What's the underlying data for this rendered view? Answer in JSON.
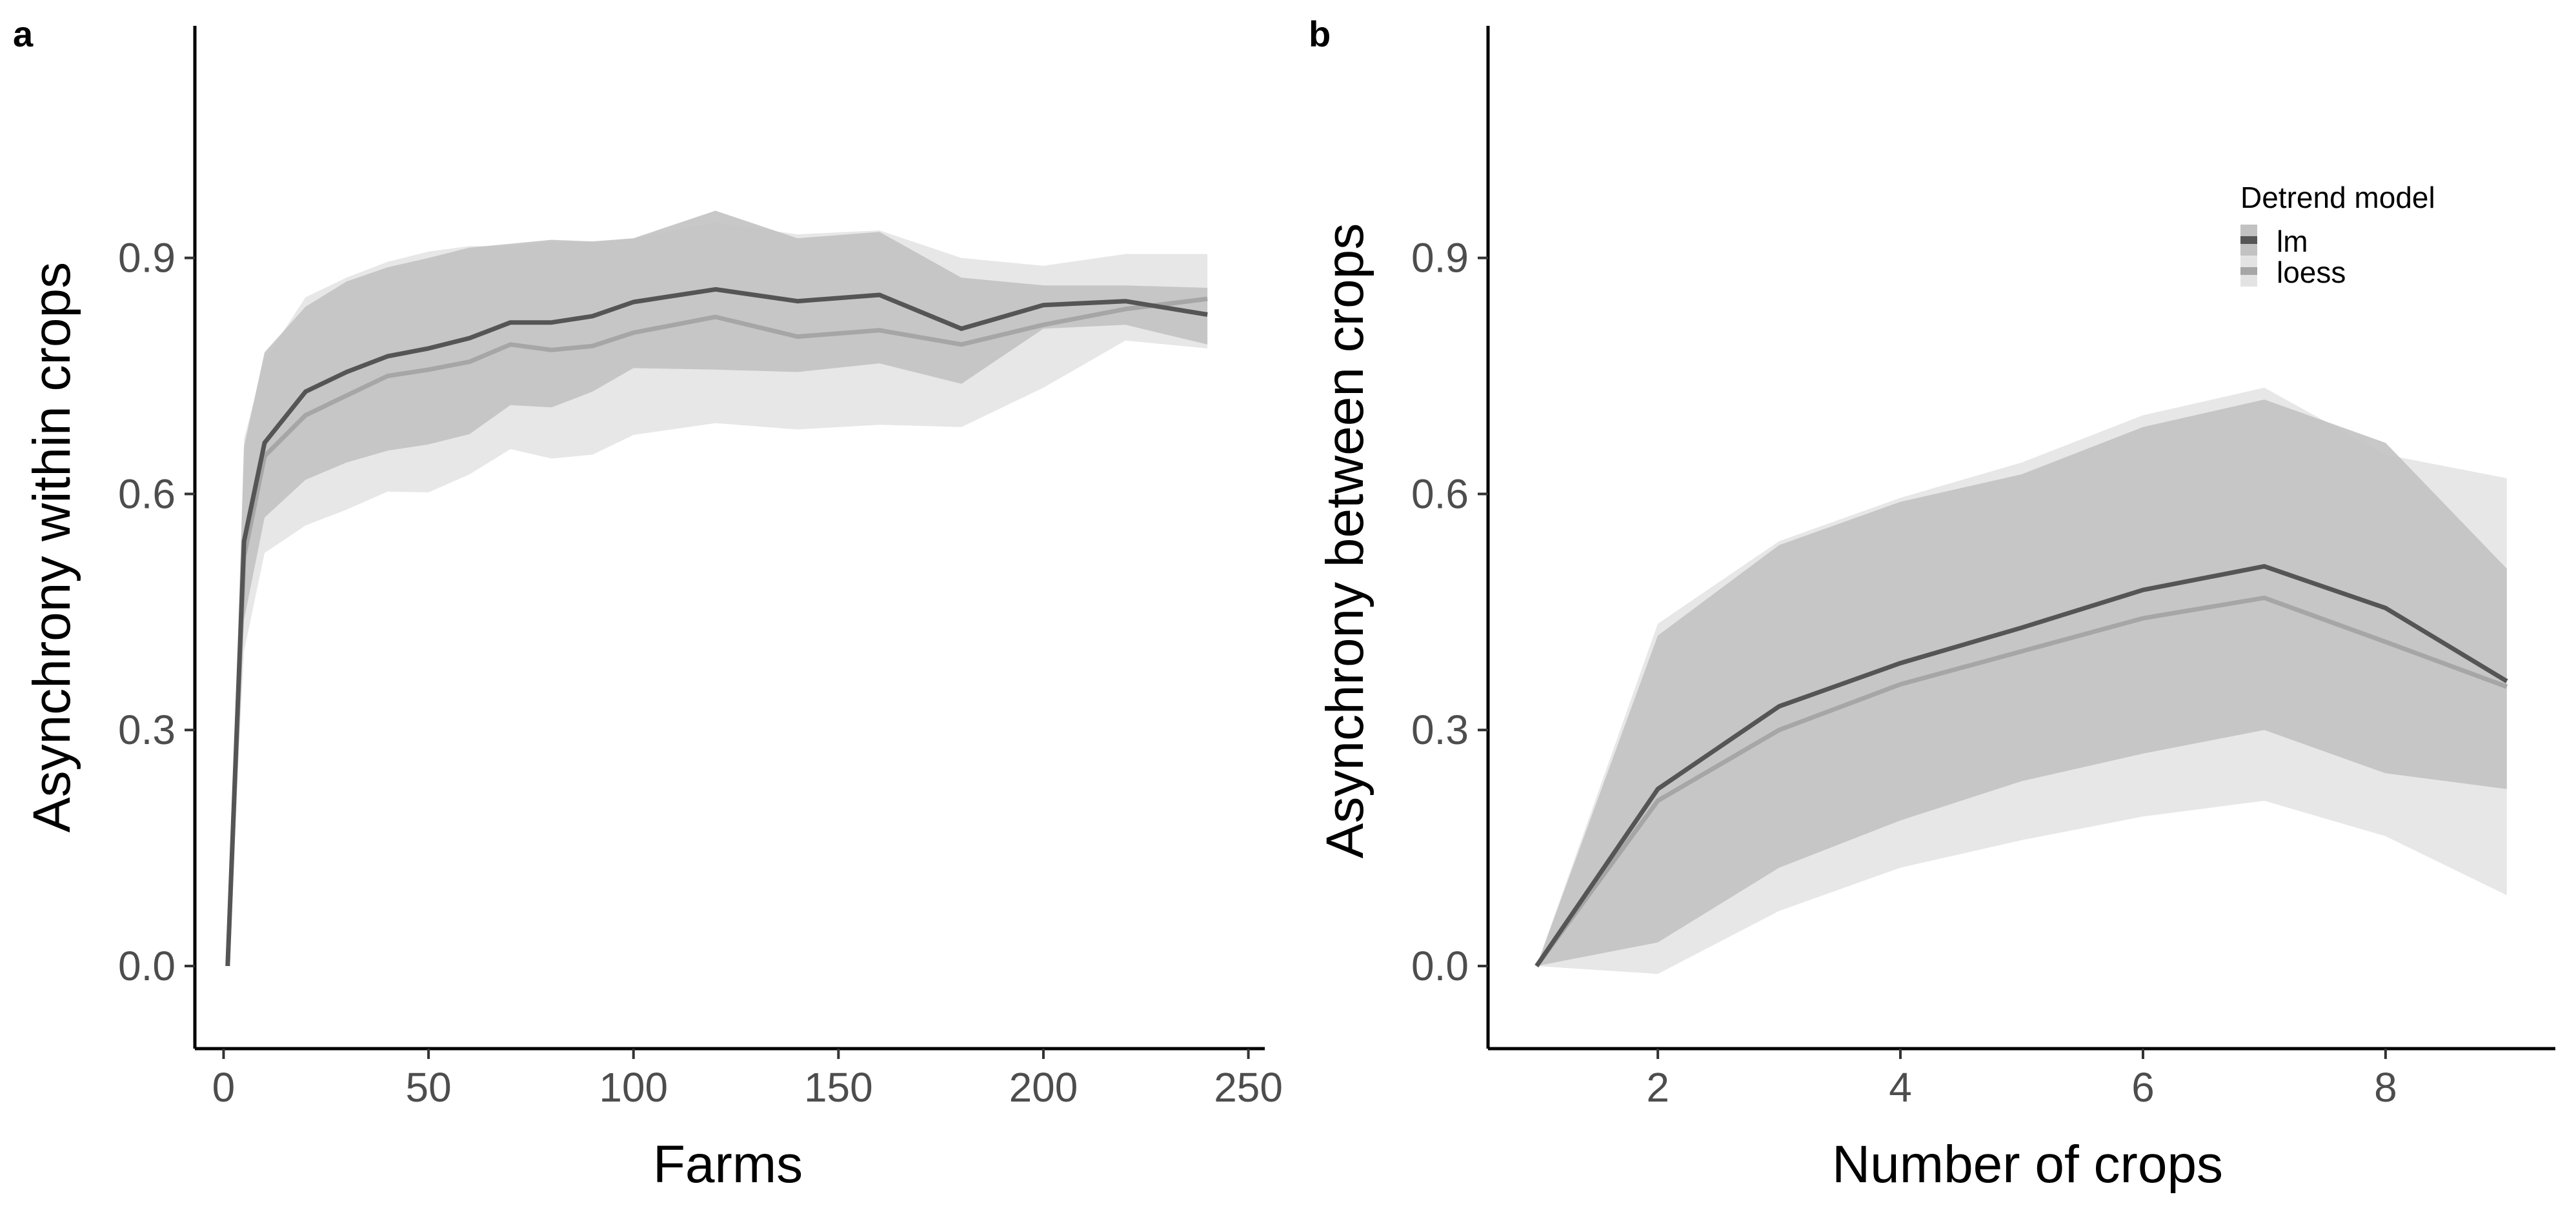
{
  "legend": {
    "title": "Detrend model",
    "entries": [
      {
        "label": "lm",
        "line_color": "#555555",
        "band_color": "#c2c2c2",
        "band_opacity": 0.9
      },
      {
        "label": "loess",
        "line_color": "#a6a6a6",
        "band_color": "#e3e3e3",
        "band_opacity": 0.85
      }
    ]
  },
  "chart_data": [
    {
      "panel": "a",
      "type": "line",
      "xlabel": "Farms",
      "ylabel": "Asynchrony within crops",
      "xlim": [
        -7,
        254
      ],
      "ylim": [
        -0.105,
        1.195
      ],
      "xticks": [
        0,
        50,
        100,
        150,
        200,
        250
      ],
      "yticks": [
        0.0,
        0.3,
        0.6,
        0.9
      ],
      "ytick_labels": [
        "0.0",
        "0.3",
        "0.6",
        "0.9"
      ],
      "grid": false,
      "x": [
        1,
        5,
        10,
        20,
        30,
        40,
        50,
        60,
        70,
        80,
        90,
        100,
        120,
        140,
        160,
        180,
        200,
        220,
        240
      ],
      "series": [
        {
          "name": "lm",
          "values": [
            0.0,
            0.54,
            0.665,
            0.73,
            0.755,
            0.775,
            0.785,
            0.798,
            0.818,
            0.818,
            0.826,
            0.844,
            0.86,
            0.845,
            0.853,
            0.81,
            0.84,
            0.845,
            0.828
          ],
          "lower": [
            0.0,
            0.44,
            0.57,
            0.618,
            0.64,
            0.655,
            0.663,
            0.676,
            0.713,
            0.71,
            0.73,
            0.76,
            0.758,
            0.755,
            0.766,
            0.74,
            0.81,
            0.815,
            0.79
          ],
          "upper": [
            0.0,
            0.66,
            0.78,
            0.838,
            0.87,
            0.888,
            0.9,
            0.913,
            0.918,
            0.923,
            0.921,
            0.925,
            0.96,
            0.925,
            0.933,
            0.875,
            0.865,
            0.865,
            0.862
          ]
        },
        {
          "name": "loess",
          "values": [
            0.0,
            0.52,
            0.648,
            0.7,
            0.725,
            0.75,
            0.758,
            0.768,
            0.79,
            0.783,
            0.788,
            0.805,
            0.825,
            0.8,
            0.808,
            0.79,
            0.815,
            0.835,
            0.848
          ],
          "lower": [
            0.0,
            0.4,
            0.525,
            0.56,
            0.58,
            0.603,
            0.602,
            0.625,
            0.657,
            0.645,
            0.65,
            0.675,
            0.69,
            0.682,
            0.688,
            0.685,
            0.735,
            0.795,
            0.785
          ],
          "upper": [
            0.0,
            0.67,
            0.77,
            0.85,
            0.875,
            0.895,
            0.908,
            0.915,
            0.915,
            0.92,
            0.92,
            0.925,
            0.945,
            0.93,
            0.935,
            0.9,
            0.89,
            0.905,
            0.905
          ]
        }
      ]
    },
    {
      "panel": "b",
      "type": "line",
      "xlabel": "Number of crops",
      "ylabel": "Asynchrony between crops",
      "xlim": [
        0.6,
        9.4
      ],
      "ylim": [
        -0.105,
        1.195
      ],
      "xticks": [
        2,
        4,
        6,
        8
      ],
      "yticks": [
        0.0,
        0.3,
        0.6,
        0.9
      ],
      "ytick_labels": [
        "0.0",
        "0.3",
        "0.6",
        "0.9"
      ],
      "grid": false,
      "x": [
        1,
        2,
        3,
        4,
        5,
        6,
        7,
        8,
        9
      ],
      "series": [
        {
          "name": "lm",
          "values": [
            0.0,
            0.225,
            0.33,
            0.385,
            0.43,
            0.478,
            0.508,
            0.455,
            0.362
          ],
          "lower": [
            0.0,
            0.03,
            0.125,
            0.185,
            0.235,
            0.27,
            0.3,
            0.245,
            0.225
          ],
          "upper": [
            0.0,
            0.42,
            0.535,
            0.59,
            0.625,
            0.685,
            0.72,
            0.665,
            0.505
          ]
        },
        {
          "name": "loess",
          "values": [
            0.0,
            0.21,
            0.3,
            0.358,
            0.4,
            0.442,
            0.468,
            0.412,
            0.355
          ],
          "lower": [
            0.0,
            -0.01,
            0.07,
            0.125,
            0.16,
            0.19,
            0.21,
            0.165,
            0.09
          ],
          "upper": [
            0.0,
            0.435,
            0.54,
            0.595,
            0.64,
            0.7,
            0.735,
            0.65,
            0.62
          ]
        }
      ]
    }
  ]
}
